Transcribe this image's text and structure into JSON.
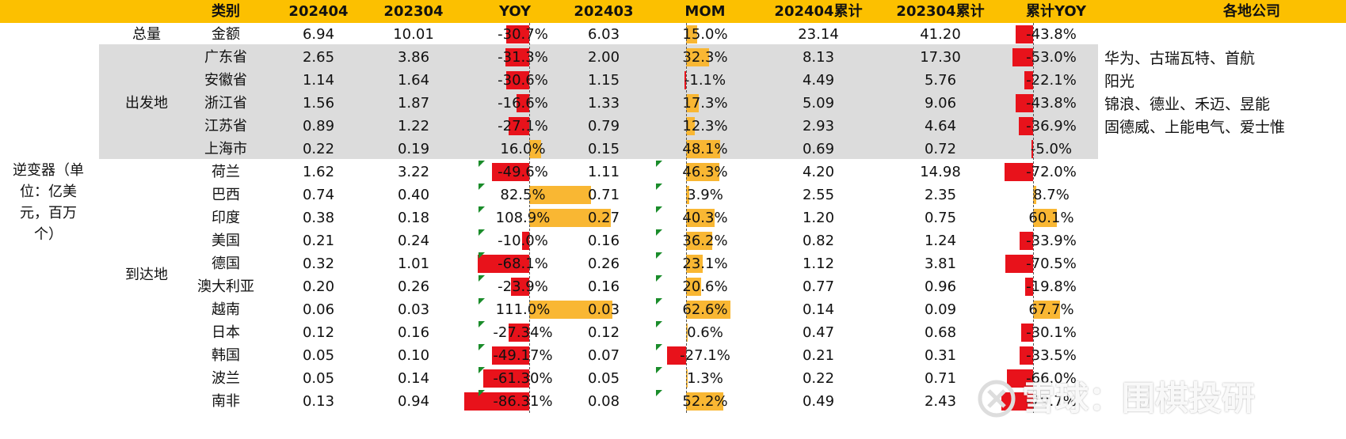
{
  "headers": [
    "类别",
    "202404",
    "202304",
    "YOY",
    "202403",
    "MOM",
    "202404累计",
    "202304累计",
    "累计YOY",
    "各地公司"
  ],
  "left_label": "逆变器（单位：亿美元，百万个）",
  "left_label_lines": [
    "逆变器（单",
    "位：亿美",
    "元，百万",
    "个）"
  ],
  "group_labels": {
    "total": "总量",
    "origin": "出发地",
    "destination": "到达地"
  },
  "rows": [
    {
      "name": "金额",
      "v2404": "6.94",
      "v2304": "10.01",
      "yoy": "-30.7%",
      "yoy_val": -30.7,
      "v2403": "6.03",
      "mom": "15.0%",
      "mom_val": 15.0,
      "cum2404": "23.14",
      "cum2304": "41.20",
      "cyoy": "-43.8%",
      "cyoy_val": -43.8
    },
    {
      "name": "广东省",
      "v2404": "2.65",
      "v2304": "3.86",
      "yoy": "-31.3%",
      "yoy_val": -31.3,
      "v2403": "2.00",
      "mom": "32.3%",
      "mom_val": 32.3,
      "cum2404": "8.13",
      "cum2304": "17.30",
      "cyoy": "-53.0%",
      "cyoy_val": -53.0
    },
    {
      "name": "安徽省",
      "v2404": "1.14",
      "v2304": "1.64",
      "yoy": "-30.6%",
      "yoy_val": -30.6,
      "v2403": "1.15",
      "mom": "-1.1%",
      "mom_val": -1.1,
      "cum2404": "4.49",
      "cum2304": "5.76",
      "cyoy": "-22.1%",
      "cyoy_val": -22.1
    },
    {
      "name": "浙江省",
      "v2404": "1.56",
      "v2304": "1.87",
      "yoy": "-16.6%",
      "yoy_val": -16.6,
      "v2403": "1.33",
      "mom": "17.3%",
      "mom_val": 17.3,
      "cum2404": "5.09",
      "cum2304": "9.06",
      "cyoy": "-43.8%",
      "cyoy_val": -43.8
    },
    {
      "name": "江苏省",
      "v2404": "0.89",
      "v2304": "1.22",
      "yoy": "-27.1%",
      "yoy_val": -27.1,
      "v2403": "0.79",
      "mom": "12.3%",
      "mom_val": 12.3,
      "cum2404": "2.93",
      "cum2304": "4.64",
      "cyoy": "-36.9%",
      "cyoy_val": -36.9
    },
    {
      "name": "上海市",
      "v2404": "0.22",
      "v2304": "0.19",
      "yoy": "16.0%",
      "yoy_val": 16.0,
      "v2403": "0.15",
      "mom": "48.1%",
      "mom_val": 48.1,
      "cum2404": "0.69",
      "cum2304": "0.72",
      "cyoy": "-5.0%",
      "cyoy_val": -5.0
    },
    {
      "name": "荷兰",
      "v2404": "1.62",
      "v2304": "3.22",
      "yoy": "-49.6%",
      "yoy_val": -49.6,
      "v2403": "1.11",
      "mom": "46.3%",
      "mom_val": 46.3,
      "cum2404": "4.20",
      "cum2304": "14.98",
      "cyoy": "-72.0%",
      "cyoy_val": -72.0
    },
    {
      "name": "巴西",
      "v2404": "0.74",
      "v2304": "0.40",
      "yoy": "82.5%",
      "yoy_val": 82.5,
      "v2403": "0.71",
      "mom": "3.9%",
      "mom_val": 3.9,
      "cum2404": "2.55",
      "cum2304": "2.35",
      "cyoy": "8.7%",
      "cyoy_val": 8.7
    },
    {
      "name": "印度",
      "v2404": "0.38",
      "v2304": "0.18",
      "yoy": "108.9%",
      "yoy_val": 108.9,
      "v2403": "0.27",
      "mom": "40.3%",
      "mom_val": 40.3,
      "cum2404": "1.20",
      "cum2304": "0.75",
      "cyoy": "60.1%",
      "cyoy_val": 60.1
    },
    {
      "name": "美国",
      "v2404": "0.21",
      "v2304": "0.24",
      "yoy": "-10.0%",
      "yoy_val": -10.0,
      "v2403": "0.16",
      "mom": "36.2%",
      "mom_val": 36.2,
      "cum2404": "0.82",
      "cum2304": "1.24",
      "cyoy": "-33.9%",
      "cyoy_val": -33.9
    },
    {
      "name": "德国",
      "v2404": "0.32",
      "v2304": "1.01",
      "yoy": "-68.1%",
      "yoy_val": -68.1,
      "v2403": "0.26",
      "mom": "23.1%",
      "mom_val": 23.1,
      "cum2404": "1.12",
      "cum2304": "3.81",
      "cyoy": "-70.5%",
      "cyoy_val": -70.5
    },
    {
      "name": "澳大利亚",
      "v2404": "0.20",
      "v2304": "0.26",
      "yoy": "-23.9%",
      "yoy_val": -23.9,
      "v2403": "0.16",
      "mom": "20.6%",
      "mom_val": 20.6,
      "cum2404": "0.77",
      "cum2304": "0.96",
      "cyoy": "-19.8%",
      "cyoy_val": -19.8
    },
    {
      "name": "越南",
      "v2404": "0.06",
      "v2304": "0.03",
      "yoy": "111.0%",
      "yoy_val": 111.0,
      "v2403": "0.03",
      "mom": "62.6%",
      "mom_val": 62.6,
      "cum2404": "0.14",
      "cum2304": "0.09",
      "cyoy": "67.7%",
      "cyoy_val": 67.7
    },
    {
      "name": "日本",
      "v2404": "0.12",
      "v2304": "0.16",
      "yoy": "-27.34%",
      "yoy_val": -27.34,
      "v2403": "0.12",
      "mom": "0.6%",
      "mom_val": 0.6,
      "cum2404": "0.47",
      "cum2304": "0.68",
      "cyoy": "-30.1%",
      "cyoy_val": -30.1
    },
    {
      "name": "韩国",
      "v2404": "0.05",
      "v2304": "0.10",
      "yoy": "-49.17%",
      "yoy_val": -49.17,
      "v2403": "0.07",
      "mom": "-27.1%",
      "mom_val": -27.1,
      "cum2404": "0.21",
      "cum2304": "0.31",
      "cyoy": "-33.5%",
      "cyoy_val": -33.5
    },
    {
      "name": "波兰",
      "v2404": "0.05",
      "v2304": "0.14",
      "yoy": "-61.30%",
      "yoy_val": -61.3,
      "v2403": "0.05",
      "mom": "1.3%",
      "mom_val": 1.3,
      "cum2404": "0.22",
      "cum2304": "0.71",
      "cyoy": "-66.0%",
      "cyoy_val": -66.0
    },
    {
      "name": "南非",
      "v2404": "0.13",
      "v2304": "0.94",
      "yoy": "-86.31%",
      "yoy_val": -86.31,
      "v2403": "0.08",
      "mom": "52.2%",
      "mom_val": 52.2,
      "cum2404": "0.49",
      "cum2304": "2.43",
      "cyoy": "-79.7%",
      "cyoy_val": -79.7
    }
  ],
  "companies": [
    "华为、古瑞瓦特、首航",
    "阳光",
    "锦浪、德业、禾迈、昱能",
    "固德威、上能电气、爱士惟"
  ],
  "watermark": "雪球：围棋投研",
  "colors": {
    "header": "#fcc000",
    "negative": "#e8121b",
    "positive": "#f9b733",
    "origin_shade": "#dcdcdc"
  }
}
